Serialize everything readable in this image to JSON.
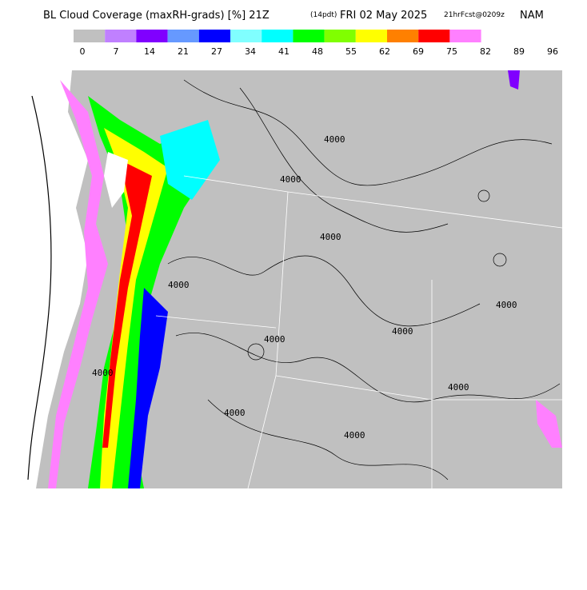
{
  "header": {
    "title": "BL Cloud Coverage (maxRH-grads) [%] 21Z",
    "time_local": "(14pdt)",
    "date": "FRI 02 May 2025",
    "forecast": "21hrFcst@0209z",
    "model": "NAM"
  },
  "legend": {
    "colors": [
      "#c0c0c0",
      "#c080ff",
      "#8000ff",
      "#6699ff",
      "#0000ff",
      "#80ffff",
      "#00ffff",
      "#00ff00",
      "#80ff00",
      "#ffff00",
      "#ff8000",
      "#ff0000",
      "#ff80ff"
    ],
    "labels": [
      0,
      7,
      14,
      21,
      27,
      34,
      41,
      48,
      55,
      62,
      69,
      75,
      82,
      89,
      96
    ]
  },
  "map": {
    "contour_labels": [
      "4000",
      "4000",
      "4000",
      "4000",
      "4000",
      "4000",
      "4000",
      "4000",
      "4000",
      "4000",
      "4000"
    ]
  }
}
